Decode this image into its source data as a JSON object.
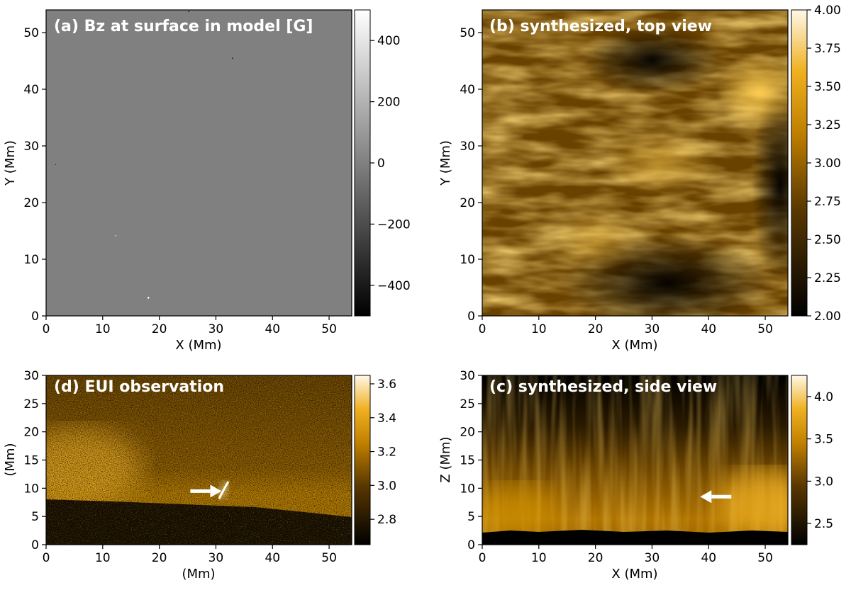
{
  "figure": {
    "accent_colors": {
      "gray_low": "#000000",
      "gray_mid": "#808080",
      "gray_high": "#ffffff",
      "gold_low": "#000000",
      "gold_mid": "#c08000",
      "gold_high": "#fff8e8"
    }
  },
  "chart_data": [
    {
      "id": "a",
      "type": "heatmap",
      "title": "(a) Bz at surface in model [G]",
      "xlabel": "X (Mm)",
      "ylabel": "Y (Mm)",
      "xlim": [
        0,
        54
      ],
      "ylim": [
        0,
        54
      ],
      "xticks": [
        "0",
        "10",
        "20",
        "30",
        "40",
        "50"
      ],
      "yticks": [
        "0",
        "10",
        "20",
        "30",
        "40",
        "50"
      ],
      "colormap": "gray",
      "colorbar": {
        "min": -500,
        "max": 500,
        "ticks": [
          "400",
          "200",
          "0",
          "−200",
          "−400"
        ]
      }
    },
    {
      "id": "b",
      "type": "heatmap",
      "title": "(b) synthesized, top view",
      "xlabel": "X (Mm)",
      "ylabel": "Y (Mm)",
      "xlim": [
        0,
        54
      ],
      "ylim": [
        0,
        54
      ],
      "xticks": [
        "0",
        "10",
        "20",
        "30",
        "40",
        "50"
      ],
      "yticks": [
        "0",
        "10",
        "20",
        "30",
        "40",
        "50"
      ],
      "colormap": "gold",
      "colorbar": {
        "min": 2.0,
        "max": 4.0,
        "ticks": [
          "4.00",
          "3.75",
          "3.50",
          "3.25",
          "3.00",
          "2.75",
          "2.50",
          "2.25",
          "2.00"
        ]
      }
    },
    {
      "id": "d",
      "type": "heatmap",
      "title": "(d) EUI observation",
      "xlabel": "(Mm)",
      "ylabel": "(Mm)",
      "xlim": [
        0,
        54
      ],
      "ylim": [
        0,
        30
      ],
      "xticks": [
        "0",
        "10",
        "20",
        "30",
        "40",
        "50"
      ],
      "yticks": [
        "0",
        "5",
        "10",
        "15",
        "20",
        "25",
        "30"
      ],
      "colormap": "gold",
      "colorbar": {
        "min": 2.65,
        "max": 3.65,
        "ticks": [
          "3.6",
          "3.4",
          "3.2",
          "3.0",
          "2.8"
        ]
      },
      "annotation": {
        "type": "arrow",
        "direction": "right",
        "tip": [
          31,
          9.5
        ]
      }
    },
    {
      "id": "c",
      "type": "heatmap",
      "title": "(c) synthesized, side view",
      "xlabel": "X (Mm)",
      "ylabel": "Z (Mm)",
      "xlim": [
        0,
        54
      ],
      "ylim": [
        0,
        30
      ],
      "xticks": [
        "0",
        "10",
        "20",
        "30",
        "40",
        "50"
      ],
      "yticks": [
        "0",
        "5",
        "10",
        "15",
        "20",
        "25",
        "30"
      ],
      "colormap": "gold",
      "colorbar": {
        "min": 2.25,
        "max": 4.25,
        "ticks": [
          "4.0",
          "3.5",
          "3.0",
          "2.5"
        ]
      },
      "annotation": {
        "type": "arrow",
        "direction": "left",
        "tip": [
          38.5,
          8.5
        ]
      }
    }
  ]
}
